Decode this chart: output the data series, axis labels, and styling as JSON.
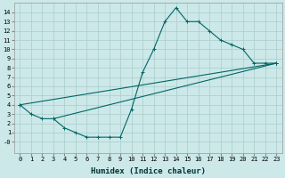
{
  "title": "",
  "xlabel": "Humidex (Indice chaleur)",
  "background_color": "#cce8e8",
  "grid_color": "#aacccc",
  "line_color": "#006666",
  "xlim": [
    -0.5,
    23.5
  ],
  "ylim": [
    -1.2,
    15.0
  ],
  "xticks": [
    0,
    1,
    2,
    3,
    4,
    5,
    6,
    7,
    8,
    9,
    10,
    11,
    12,
    13,
    14,
    15,
    16,
    17,
    18,
    19,
    20,
    21,
    22,
    23
  ],
  "yticks": [
    0,
    1,
    2,
    3,
    4,
    5,
    6,
    7,
    8,
    9,
    10,
    11,
    12,
    13,
    14
  ],
  "series": [
    {
      "x": [
        0,
        1,
        2,
        3,
        4,
        5,
        6,
        7,
        8,
        9,
        10,
        11,
        12,
        13,
        14,
        15,
        16,
        17,
        18,
        19,
        20,
        21,
        22,
        23
      ],
      "y": [
        4,
        3,
        2.5,
        2.5,
        1.5,
        1,
        0.5,
        0.5,
        0.5,
        0.5,
        3.5,
        7.5,
        10,
        13,
        14.5,
        13,
        13,
        12,
        11,
        10.5,
        10,
        8.5,
        8.5,
        8.5
      ]
    },
    {
      "x": [
        0,
        23
      ],
      "y": [
        4,
        8.5
      ]
    },
    {
      "x": [
        3,
        23
      ],
      "y": [
        2.5,
        8.5
      ]
    }
  ]
}
